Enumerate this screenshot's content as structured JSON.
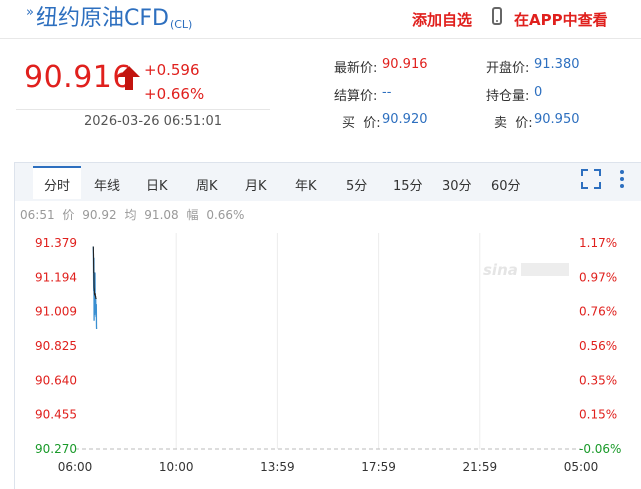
{
  "header": {
    "title": "纽约原油CFD",
    "title_suffix": "(CL)",
    "favorite_label": "添加自选",
    "app_label": "在APP中查看"
  },
  "quote": {
    "price": "90.916",
    "change": "+0.596",
    "change_pct": "+0.66%",
    "timestamp": "2026-03-26 06:51:01",
    "direction": "up"
  },
  "stats": {
    "latest_label": "最新价:",
    "latest_value": "90.916",
    "settle_label": "结算价:",
    "settle_value": "--",
    "buy_label": "买  价:",
    "buy_value": "90.920",
    "open_label": "开盘价:",
    "open_value": "91.380",
    "oi_label": "持仓量:",
    "oi_value": "0",
    "sell_label": "卖  价:",
    "sell_value": "90.950"
  },
  "tabs": [
    "分时",
    "年线",
    "日K",
    "周K",
    "月K",
    "年K",
    "5分",
    "15分",
    "30分",
    "60分"
  ],
  "active_tab": 0,
  "info_line": {
    "time": "06:51",
    "price_label": "价",
    "price_value": "90.92",
    "avg_label": "均",
    "avg_value": "91.08",
    "amp_label": "幅",
    "amp_value": "0.66%"
  },
  "colors": {
    "up": "#e0201d",
    "down": "#1a9a2a",
    "accent": "#2d6fbf",
    "price_line": "#3a8fd1",
    "avg_line": "#222222"
  },
  "chart_data": {
    "type": "line",
    "y_ticks": [
      "91.379",
      "91.194",
      "91.009",
      "90.825",
      "90.640",
      "90.455",
      "90.270"
    ],
    "y_pct_ticks": [
      "1.17%",
      "0.97%",
      "0.76%",
      "0.56%",
      "0.35%",
      "0.15%",
      "-0.06%"
    ],
    "x_ticks": [
      "06:00",
      "10:00",
      "13:59",
      "17:59",
      "21:59",
      "05:00"
    ],
    "ylim": [
      90.27,
      91.379
    ],
    "x_minutes_from_session_start": [
      50,
      50.5,
      51,
      51.5,
      52,
      52.5,
      53,
      53.5,
      54,
      54.5,
      55,
      55.5,
      56,
      56.5,
      57,
      57.5,
      58,
      58.5,
      59
    ],
    "series": [
      {
        "values": [
          91.36,
          91.25,
          91.12,
          91.3,
          90.96,
          91.1,
          91.02,
          90.99,
          91.13,
          91.22,
          91.05,
          91.1,
          91.0,
          91.08,
          91.02,
          90.98,
          91.05,
          90.93,
          90.916
        ]
      },
      {
        "values": [
          91.36,
          91.32,
          91.22,
          91.22,
          91.14,
          91.13,
          91.11,
          91.1,
          91.1,
          91.11,
          91.1,
          91.1,
          91.09,
          91.09,
          91.08,
          91.08,
          91.08,
          91.08,
          91.08
        ]
      }
    ]
  }
}
